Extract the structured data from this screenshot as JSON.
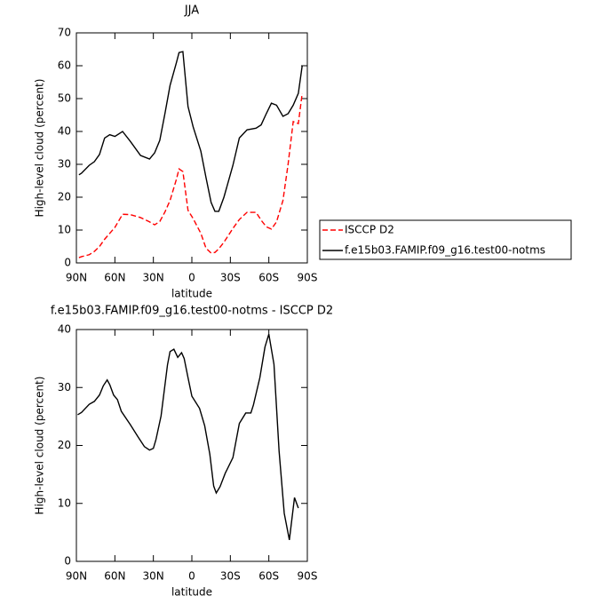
{
  "chart_data": [
    {
      "type": "line",
      "title": "JJA",
      "x_label": "latitude",
      "y_label": "High-level cloud (percent)",
      "x": [
        88,
        86,
        80,
        76,
        72,
        68,
        64,
        60,
        54,
        48,
        40,
        33,
        29,
        25,
        21,
        17,
        12,
        10,
        7,
        3,
        -1,
        -7,
        -11,
        -15,
        -18,
        -21,
        -25,
        -32,
        -37,
        -43,
        -50,
        -54,
        -58,
        -62,
        -66,
        -71,
        -75,
        -79,
        -83,
        -86
      ],
      "series": [
        {
          "name": "ISCCP D2",
          "color": "#ff0000",
          "line_style": "dashed",
          "values": [
            1.6,
            1.9,
            2.5,
            3.5,
            5.0,
            7.2,
            9.0,
            10.8,
            14.8,
            14.7,
            13.8,
            12.5,
            11.6,
            12.6,
            15.5,
            19,
            25.5,
            28.6,
            27.8,
            16,
            13.5,
            9,
            4.5,
            3,
            3.2,
            4.3,
            6.3,
            10.5,
            13.2,
            15.4,
            15.4,
            13,
            11,
            10.3,
            12.5,
            19,
            30,
            43,
            42.4,
            51.6
          ]
        },
        {
          "name": "f.e15b03.FAMIP.f09_g16.test00-notms",
          "color": "#000000",
          "line_style": "solid",
          "values": [
            26.8,
            27.3,
            29.7,
            30.8,
            33,
            38,
            39,
            38.5,
            40,
            37,
            32.7,
            31.6,
            33.5,
            37.3,
            45.4,
            54,
            61,
            64,
            64.3,
            47.6,
            41.4,
            34,
            26,
            18.4,
            15.7,
            15.7,
            20,
            29.7,
            38,
            40.5,
            41,
            42,
            45.4,
            48.6,
            48,
            44.6,
            45.4,
            48,
            51.6,
            60
          ]
        }
      ],
      "xlim": [
        90,
        -90
      ],
      "xticks": [
        {
          "value": 90,
          "label": "90N"
        },
        {
          "value": 60,
          "label": "60N"
        },
        {
          "value": 30,
          "label": "30N"
        },
        0,
        {
          "value": -30,
          "label": "30S"
        },
        {
          "value": -60,
          "label": "60S"
        },
        {
          "value": -90,
          "label": "90S"
        }
      ],
      "ylim": [
        0,
        70
      ],
      "yticks": [
        0,
        10,
        20,
        30,
        40,
        50,
        60,
        70
      ],
      "legend": "outside-right"
    },
    {
      "type": "line",
      "title": "f.e15b03.FAMIP.f09_g16.test00-notms - ISCCP D2",
      "x_label": "latitude",
      "y_label": "High-level cloud (percent)",
      "x": [
        89,
        86,
        80,
        76,
        72,
        69,
        66,
        64,
        61,
        58,
        55,
        48,
        42,
        37,
        33,
        30,
        28,
        24,
        19,
        17,
        14,
        11,
        8,
        6,
        3,
        0,
        -6,
        -10,
        -14,
        -17,
        -19,
        -22,
        -26,
        -32,
        -37,
        -42,
        -46,
        -48,
        -53,
        -57,
        -60,
        -64,
        -68,
        -72,
        -76,
        -80,
        -83
      ],
      "color": "#000000",
      "line_style": "solid",
      "values": [
        25.3,
        25.7,
        27.1,
        27.6,
        28.7,
        30.3,
        31.3,
        30.5,
        28.7,
        27.9,
        25.9,
        23.6,
        21.5,
        19.8,
        19.2,
        19.5,
        21,
        25.1,
        33.9,
        36.2,
        36.6,
        35.2,
        36,
        35,
        31.7,
        28.5,
        26.4,
        23.4,
        18.5,
        13,
        11.8,
        12.9,
        15.2,
        17.9,
        23.8,
        25.6,
        25.6,
        27,
        31.7,
        37,
        39.2,
        34,
        19,
        8.3,
        3.7,
        11,
        9.2
      ],
      "xlim": [
        90,
        -90
      ],
      "xticks": [
        {
          "value": 90,
          "label": "90N"
        },
        {
          "value": 60,
          "label": "60N"
        },
        {
          "value": 30,
          "label": "30N"
        },
        0,
        {
          "value": -30,
          "label": "30S"
        },
        {
          "value": -60,
          "label": "60S"
        },
        {
          "value": -90,
          "label": "90S"
        }
      ],
      "ylim": [
        0,
        40
      ],
      "yticks": [
        0,
        10,
        20,
        30,
        40
      ]
    }
  ]
}
